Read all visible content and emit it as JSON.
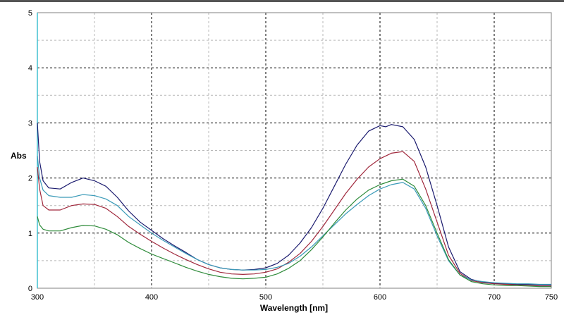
{
  "chart_data": {
    "type": "line",
    "title": "",
    "xlabel": "Wavelength [nm]",
    "ylabel": "Abs",
    "xlim": [
      300,
      750
    ],
    "ylim": [
      0,
      5
    ],
    "x_ticks": [
      300,
      400,
      500,
      600,
      700,
      750
    ],
    "y_ticks": [
      0,
      1,
      2,
      3,
      4,
      5
    ],
    "grid": true,
    "legend": "none",
    "series": [
      {
        "color": "#1a1a6e",
        "points": [
          [
            300,
            3.0
          ],
          [
            302,
            2.3
          ],
          [
            305,
            1.95
          ],
          [
            310,
            1.82
          ],
          [
            320,
            1.8
          ],
          [
            330,
            1.92
          ],
          [
            340,
            2.0
          ],
          [
            350,
            1.95
          ],
          [
            360,
            1.85
          ],
          [
            370,
            1.65
          ],
          [
            380,
            1.4
          ],
          [
            390,
            1.2
          ],
          [
            400,
            1.05
          ],
          [
            410,
            0.9
          ],
          [
            420,
            0.77
          ],
          [
            430,
            0.65
          ],
          [
            440,
            0.52
          ],
          [
            450,
            0.43
          ],
          [
            460,
            0.37
          ],
          [
            470,
            0.34
          ],
          [
            480,
            0.33
          ],
          [
            490,
            0.34
          ],
          [
            500,
            0.37
          ],
          [
            510,
            0.45
          ],
          [
            520,
            0.6
          ],
          [
            530,
            0.82
          ],
          [
            540,
            1.1
          ],
          [
            550,
            1.45
          ],
          [
            560,
            1.85
          ],
          [
            570,
            2.25
          ],
          [
            580,
            2.6
          ],
          [
            590,
            2.85
          ],
          [
            600,
            2.95
          ],
          [
            605,
            2.93
          ],
          [
            610,
            2.97
          ],
          [
            620,
            2.93
          ],
          [
            630,
            2.7
          ],
          [
            640,
            2.2
          ],
          [
            650,
            1.5
          ],
          [
            660,
            0.75
          ],
          [
            670,
            0.3
          ],
          [
            680,
            0.16
          ],
          [
            690,
            0.11
          ],
          [
            700,
            0.09
          ],
          [
            710,
            0.08
          ],
          [
            720,
            0.07
          ],
          [
            730,
            0.07
          ],
          [
            740,
            0.06
          ],
          [
            750,
            0.06
          ]
        ]
      },
      {
        "color": "#a0283c",
        "points": [
          [
            300,
            2.2
          ],
          [
            302,
            1.8
          ],
          [
            305,
            1.5
          ],
          [
            310,
            1.42
          ],
          [
            320,
            1.42
          ],
          [
            330,
            1.5
          ],
          [
            340,
            1.53
          ],
          [
            350,
            1.52
          ],
          [
            360,
            1.45
          ],
          [
            370,
            1.3
          ],
          [
            380,
            1.12
          ],
          [
            390,
            0.98
          ],
          [
            400,
            0.85
          ],
          [
            410,
            0.73
          ],
          [
            420,
            0.62
          ],
          [
            430,
            0.52
          ],
          [
            440,
            0.43
          ],
          [
            450,
            0.35
          ],
          [
            460,
            0.29
          ],
          [
            470,
            0.26
          ],
          [
            480,
            0.25
          ],
          [
            490,
            0.26
          ],
          [
            500,
            0.29
          ],
          [
            510,
            0.35
          ],
          [
            520,
            0.47
          ],
          [
            530,
            0.63
          ],
          [
            540,
            0.85
          ],
          [
            550,
            1.12
          ],
          [
            560,
            1.42
          ],
          [
            570,
            1.72
          ],
          [
            580,
            1.98
          ],
          [
            590,
            2.2
          ],
          [
            600,
            2.35
          ],
          [
            610,
            2.45
          ],
          [
            620,
            2.48
          ],
          [
            630,
            2.3
          ],
          [
            640,
            1.8
          ],
          [
            650,
            1.2
          ],
          [
            660,
            0.6
          ],
          [
            670,
            0.27
          ],
          [
            680,
            0.14
          ],
          [
            690,
            0.1
          ],
          [
            700,
            0.08
          ],
          [
            710,
            0.07
          ],
          [
            720,
            0.06
          ],
          [
            730,
            0.05
          ],
          [
            740,
            0.04
          ],
          [
            750,
            0.04
          ]
        ]
      },
      {
        "color": "#3a9ab8",
        "points": [
          [
            300,
            2.4
          ],
          [
            302,
            2.0
          ],
          [
            305,
            1.78
          ],
          [
            310,
            1.68
          ],
          [
            320,
            1.65
          ],
          [
            330,
            1.65
          ],
          [
            340,
            1.7
          ],
          [
            350,
            1.68
          ],
          [
            360,
            1.62
          ],
          [
            370,
            1.5
          ],
          [
            380,
            1.3
          ],
          [
            390,
            1.15
          ],
          [
            400,
            1.0
          ],
          [
            410,
            0.87
          ],
          [
            420,
            0.75
          ],
          [
            430,
            0.63
          ],
          [
            440,
            0.52
          ],
          [
            450,
            0.43
          ],
          [
            460,
            0.37
          ],
          [
            470,
            0.34
          ],
          [
            480,
            0.33
          ],
          [
            490,
            0.33
          ],
          [
            500,
            0.34
          ],
          [
            510,
            0.38
          ],
          [
            520,
            0.45
          ],
          [
            530,
            0.58
          ],
          [
            540,
            0.75
          ],
          [
            550,
            0.95
          ],
          [
            560,
            1.15
          ],
          [
            570,
            1.35
          ],
          [
            580,
            1.52
          ],
          [
            590,
            1.68
          ],
          [
            600,
            1.8
          ],
          [
            610,
            1.88
          ],
          [
            620,
            1.92
          ],
          [
            630,
            1.8
          ],
          [
            640,
            1.45
          ],
          [
            650,
            0.95
          ],
          [
            660,
            0.5
          ],
          [
            670,
            0.24
          ],
          [
            680,
            0.15
          ],
          [
            690,
            0.12
          ],
          [
            700,
            0.1
          ],
          [
            710,
            0.09
          ],
          [
            720,
            0.08
          ],
          [
            730,
            0.08
          ],
          [
            740,
            0.07
          ],
          [
            750,
            0.07
          ]
        ]
      },
      {
        "color": "#2e8b3a",
        "points": [
          [
            300,
            1.3
          ],
          [
            302,
            1.15
          ],
          [
            305,
            1.07
          ],
          [
            310,
            1.04
          ],
          [
            320,
            1.04
          ],
          [
            330,
            1.1
          ],
          [
            340,
            1.14
          ],
          [
            350,
            1.13
          ],
          [
            360,
            1.07
          ],
          [
            370,
            0.97
          ],
          [
            380,
            0.83
          ],
          [
            390,
            0.72
          ],
          [
            400,
            0.62
          ],
          [
            410,
            0.54
          ],
          [
            420,
            0.46
          ],
          [
            430,
            0.38
          ],
          [
            440,
            0.31
          ],
          [
            450,
            0.25
          ],
          [
            460,
            0.21
          ],
          [
            470,
            0.18
          ],
          [
            480,
            0.17
          ],
          [
            490,
            0.18
          ],
          [
            500,
            0.2
          ],
          [
            510,
            0.26
          ],
          [
            520,
            0.36
          ],
          [
            530,
            0.5
          ],
          [
            540,
            0.7
          ],
          [
            550,
            0.93
          ],
          [
            560,
            1.18
          ],
          [
            570,
            1.42
          ],
          [
            580,
            1.62
          ],
          [
            590,
            1.78
          ],
          [
            600,
            1.88
          ],
          [
            610,
            1.95
          ],
          [
            620,
            1.98
          ],
          [
            630,
            1.85
          ],
          [
            640,
            1.5
          ],
          [
            650,
            1.0
          ],
          [
            660,
            0.52
          ],
          [
            670,
            0.24
          ],
          [
            680,
            0.12
          ],
          [
            690,
            0.08
          ],
          [
            700,
            0.06
          ],
          [
            710,
            0.05
          ],
          [
            720,
            0.05
          ],
          [
            730,
            0.04
          ],
          [
            740,
            0.03
          ],
          [
            750,
            0.03
          ]
        ]
      }
    ]
  }
}
